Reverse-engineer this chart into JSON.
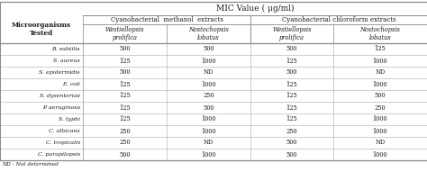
{
  "title": "MIC Value ( μg/ml)",
  "col_group1": "Cyanobacterial  methanol  extracts",
  "col_group2": "Cyanobacterial chloroform extracts",
  "col_sub1": "Westiellopsis\nprolifica",
  "col_sub2": "Nostochopsis\nlobatus",
  "col_sub3": "Westiellopsis\nprolifica",
  "col_sub4": "Nostochopsis\nlobatus",
  "row_header": "Microorganisms\nTested",
  "microorganisms": [
    "B. subtilis",
    "S. aureus",
    "S. epidermidis",
    "E. coli",
    "S. dysenteriae",
    "P. aeruginosa",
    "S. typhi",
    "C. albicans",
    "C. tropicalis",
    "C. parapilopsis"
  ],
  "data": [
    [
      "500",
      "500",
      "500",
      "125"
    ],
    [
      "125",
      "1000",
      "125",
      "1000"
    ],
    [
      "500",
      "ND",
      "500",
      "ND"
    ],
    [
      "125",
      "1000",
      "125",
      "1000"
    ],
    [
      "125",
      "250",
      "125",
      "500"
    ],
    [
      "125",
      "500",
      "125",
      "250"
    ],
    [
      "125",
      "1000",
      "125",
      "1000"
    ],
    [
      "250",
      "1000",
      "250",
      "1000"
    ],
    [
      "250",
      "ND",
      "500",
      "ND"
    ],
    [
      "500",
      "1000",
      "500",
      "1000"
    ]
  ],
  "footnote": "ND - Not determined",
  "bg_color": "#ffffff",
  "text_color": "#1a1a1a",
  "line_color": "#888888",
  "thin_line_color": "#aaaaaa"
}
